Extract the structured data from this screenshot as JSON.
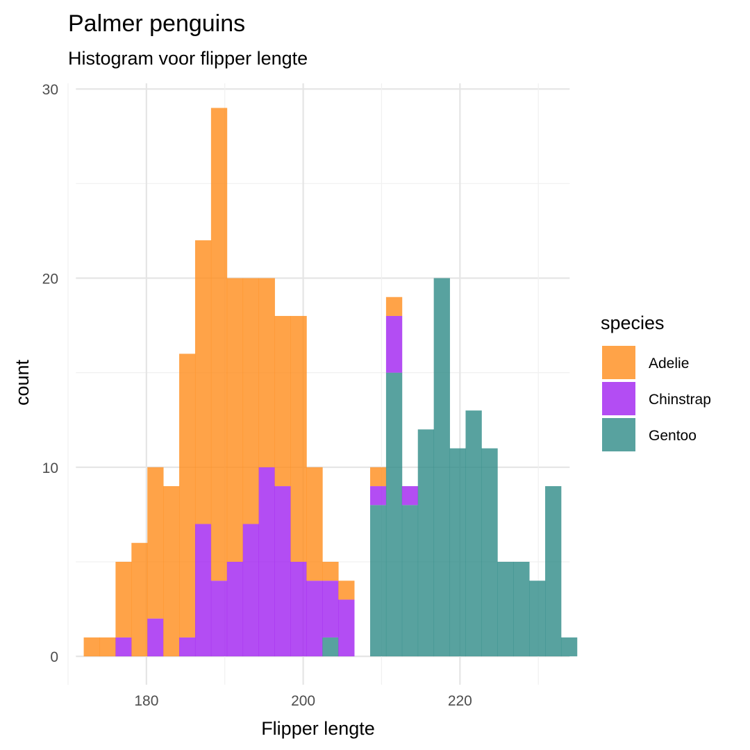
{
  "chart_data": {
    "type": "bar",
    "title": "Palmer penguins",
    "subtitle": "Histogram voor flipper lengte",
    "xlabel": "Flipper lengte",
    "ylabel": "count",
    "xlim": [
      170.0,
      234.5
    ],
    "ylim": [
      -1.5,
      30.3
    ],
    "xticks": [
      180,
      200,
      220
    ],
    "yticks": [
      0,
      10,
      20,
      30
    ],
    "grid": true,
    "stacked": true,
    "bin_width": 2.03,
    "bin_start": 172.0,
    "legend": {
      "title": "species",
      "position": "right"
    },
    "series": [
      {
        "name": "Gentoo",
        "color": "#2e8b87",
        "values": [
          0,
          0,
          0,
          0,
          0,
          0,
          0,
          0,
          0,
          0,
          0,
          0,
          0,
          0,
          0,
          1,
          0,
          0,
          8,
          15,
          8,
          12,
          20,
          11,
          13,
          11,
          5,
          5,
          4,
          9,
          1
        ]
      },
      {
        "name": "Chinstrap",
        "color": "#a020f0",
        "values": [
          0,
          0,
          1,
          0,
          2,
          0,
          1,
          7,
          4,
          5,
          7,
          10,
          9,
          5,
          4,
          3,
          3,
          0,
          1,
          3,
          1,
          0,
          0,
          0,
          0,
          0,
          0,
          0,
          0,
          0,
          0
        ]
      },
      {
        "name": "Adelie",
        "color": "#ff8c1a",
        "values": [
          1,
          1,
          4,
          6,
          8,
          9,
          15,
          15,
          25,
          15,
          13,
          10,
          9,
          13,
          6,
          1,
          1,
          0,
          1,
          1,
          0,
          0,
          0,
          0,
          0,
          0,
          0,
          0,
          0,
          0,
          0
        ]
      }
    ],
    "legend_order": [
      "Adelie",
      "Chinstrap",
      "Gentoo"
    ]
  }
}
